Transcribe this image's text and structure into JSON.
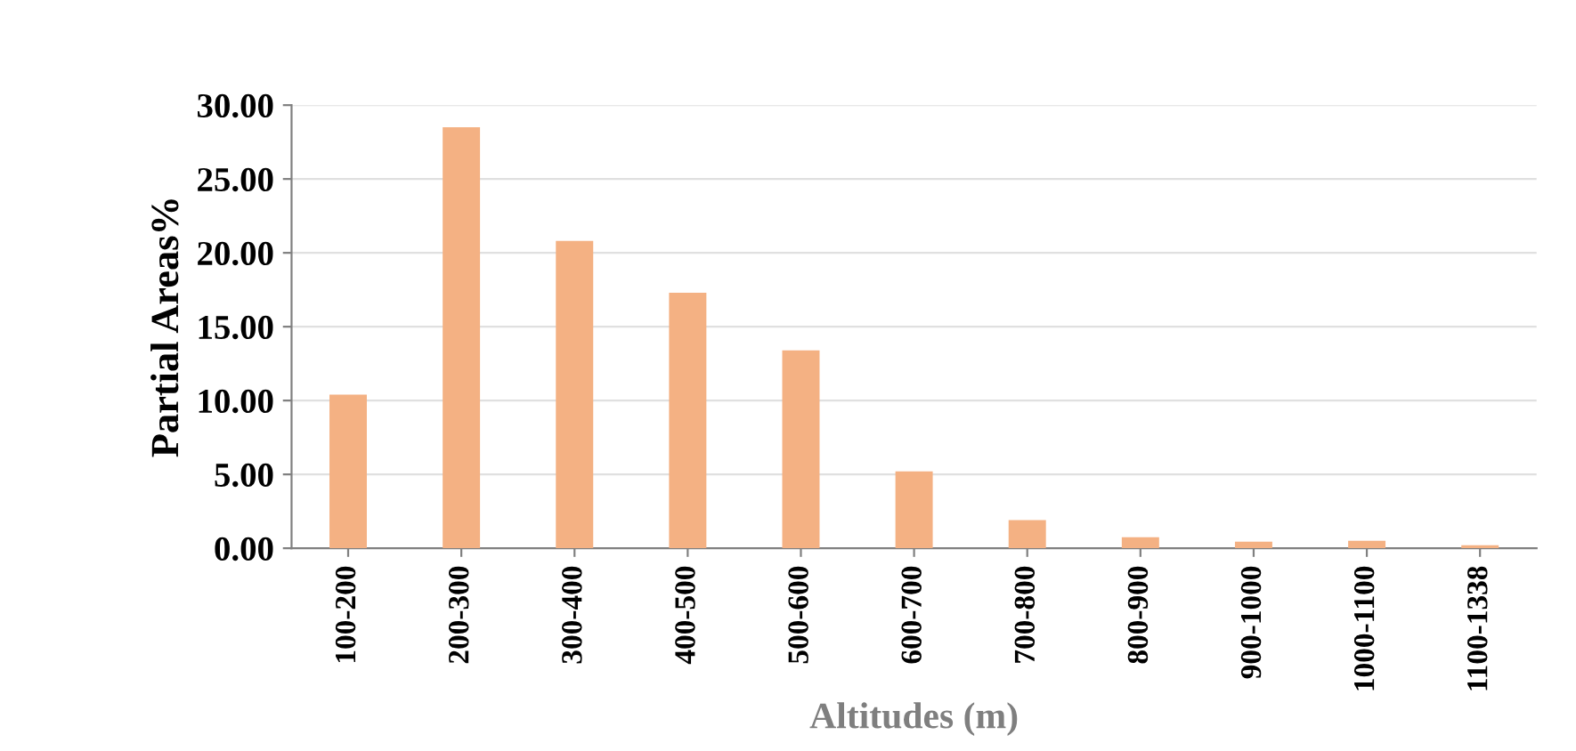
{
  "chart_data": {
    "type": "bar",
    "xlabel": "Altitudes (m)",
    "ylabel": "Partial Areas%",
    "categories": [
      "100-200",
      "200-300",
      "300-400",
      "400-500",
      "500-600",
      "600-700",
      "700-800",
      "800-900",
      "900-1000",
      "1000-1100",
      "1100-1338"
    ],
    "values": [
      10.4,
      28.5,
      20.8,
      17.3,
      13.4,
      5.2,
      1.9,
      0.75,
      0.45,
      0.5,
      0.2
    ],
    "color": "#f4b183",
    "ylim": [
      0,
      30
    ],
    "yticks": [
      {
        "value": 0,
        "label": "0.00"
      },
      {
        "value": 5,
        "label": "5.00"
      },
      {
        "value": 10,
        "label": "10.00"
      },
      {
        "value": 15,
        "label": "15.00"
      },
      {
        "value": 20,
        "label": "20.00"
      },
      {
        "value": 25,
        "label": "25.00"
      },
      {
        "value": 30,
        "label": "30.00"
      }
    ],
    "grid": "y"
  }
}
